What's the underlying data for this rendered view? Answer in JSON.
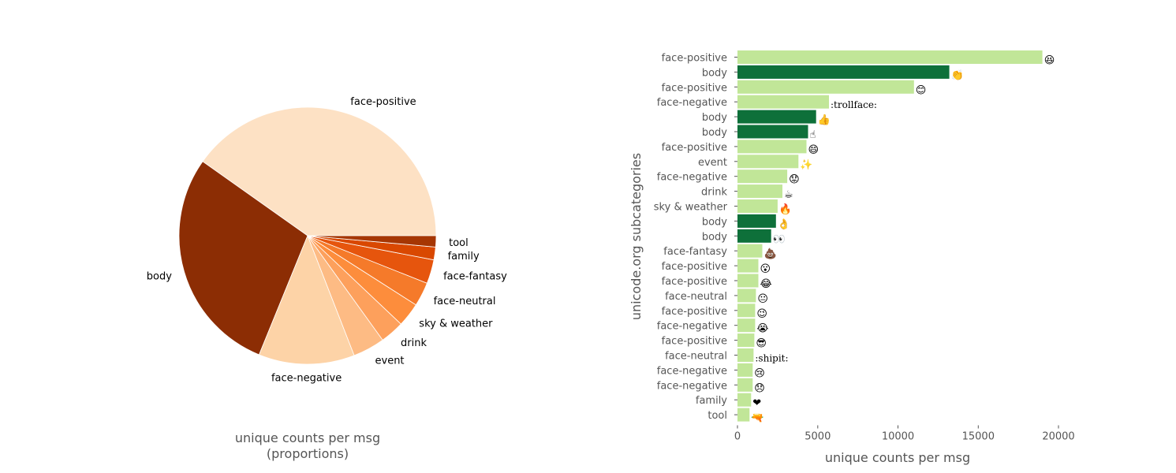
{
  "chart_data": [
    {
      "type": "pie",
      "xlabel": "unique counts per msg\n(proportions)",
      "xlabel_lines": [
        "unique counts per msg",
        "(proportions)"
      ],
      "slices": [
        {
          "label": "face-positive",
          "value": 40.0,
          "color": "#fde1c4"
        },
        {
          "label": "body",
          "value": 28.5,
          "color": "#8c2d04"
        },
        {
          "label": "face-negative",
          "value": 12.0,
          "color": "#fdd3a7"
        },
        {
          "label": "event",
          "value": 4.0,
          "color": "#fdbb84"
        },
        {
          "label": "drink",
          "value": 3.0,
          "color": "#fda05c"
        },
        {
          "label": "sky & weather",
          "value": 3.0,
          "color": "#fd8d3c"
        },
        {
          "label": "face-neutral",
          "value": 3.0,
          "color": "#f57a2a"
        },
        {
          "label": "face-fantasy",
          "value": 3.0,
          "color": "#e6550d"
        },
        {
          "label": "family",
          "value": 1.6,
          "color": "#d94801"
        },
        {
          "label": "tool",
          "value": 1.4,
          "color": "#a63603"
        }
      ]
    },
    {
      "type": "bar",
      "orientation": "horizontal",
      "xlabel": "unique counts per msg",
      "ylabel": "unicode.org subcategories",
      "xlim": [
        0,
        21000
      ],
      "xticks": [
        0,
        5000,
        10000,
        15000,
        20000
      ],
      "grid": false,
      "colors": {
        "default": "#c1e698",
        "highlight": "#0e703a"
      },
      "bars": [
        {
          "label": "face-positive",
          "value": 19000,
          "emoji": "😆",
          "highlight": false
        },
        {
          "label": "body",
          "value": 13200,
          "emoji": "👏",
          "highlight": true
        },
        {
          "label": "face-positive",
          "value": 11000,
          "emoji": "😊",
          "highlight": false
        },
        {
          "label": "face-negative",
          "value": 5700,
          "emoji": ":trollface:",
          "highlight": false
        },
        {
          "label": "body",
          "value": 4900,
          "emoji": "👍",
          "highlight": true
        },
        {
          "label": "body",
          "value": 4400,
          "emoji": "☝",
          "highlight": true
        },
        {
          "label": "face-positive",
          "value": 4300,
          "emoji": "😄",
          "highlight": false
        },
        {
          "label": "event",
          "value": 3800,
          "emoji": "✨",
          "highlight": false
        },
        {
          "label": "face-negative",
          "value": 3100,
          "emoji": "😟",
          "highlight": false
        },
        {
          "label": "drink",
          "value": 2800,
          "emoji": "☕",
          "highlight": false
        },
        {
          "label": "sky & weather",
          "value": 2500,
          "emoji": "🔥",
          "highlight": false
        },
        {
          "label": "body",
          "value": 2400,
          "emoji": "👌",
          "highlight": true
        },
        {
          "label": "body",
          "value": 2100,
          "emoji": "👀",
          "highlight": true
        },
        {
          "label": "face-fantasy",
          "value": 1550,
          "emoji": "💩",
          "highlight": false
        },
        {
          "label": "face-positive",
          "value": 1300,
          "emoji": "😮",
          "highlight": false
        },
        {
          "label": "face-positive",
          "value": 1300,
          "emoji": "😂",
          "highlight": false
        },
        {
          "label": "face-neutral",
          "value": 1150,
          "emoji": "😐",
          "highlight": false
        },
        {
          "label": "face-positive",
          "value": 1100,
          "emoji": "😉",
          "highlight": false
        },
        {
          "label": "face-negative",
          "value": 1100,
          "emoji": "😭",
          "highlight": false
        },
        {
          "label": "face-positive",
          "value": 1050,
          "emoji": "😎",
          "highlight": false
        },
        {
          "label": "face-neutral",
          "value": 1000,
          "emoji": ":shipit:",
          "highlight": false
        },
        {
          "label": "face-negative",
          "value": 950,
          "emoji": "😢",
          "highlight": false
        },
        {
          "label": "face-negative",
          "value": 950,
          "emoji": "😞",
          "highlight": false
        },
        {
          "label": "family",
          "value": 850,
          "emoji": "❤",
          "highlight": false
        },
        {
          "label": "tool",
          "value": 750,
          "emoji": "🔫",
          "highlight": false
        }
      ]
    }
  ]
}
